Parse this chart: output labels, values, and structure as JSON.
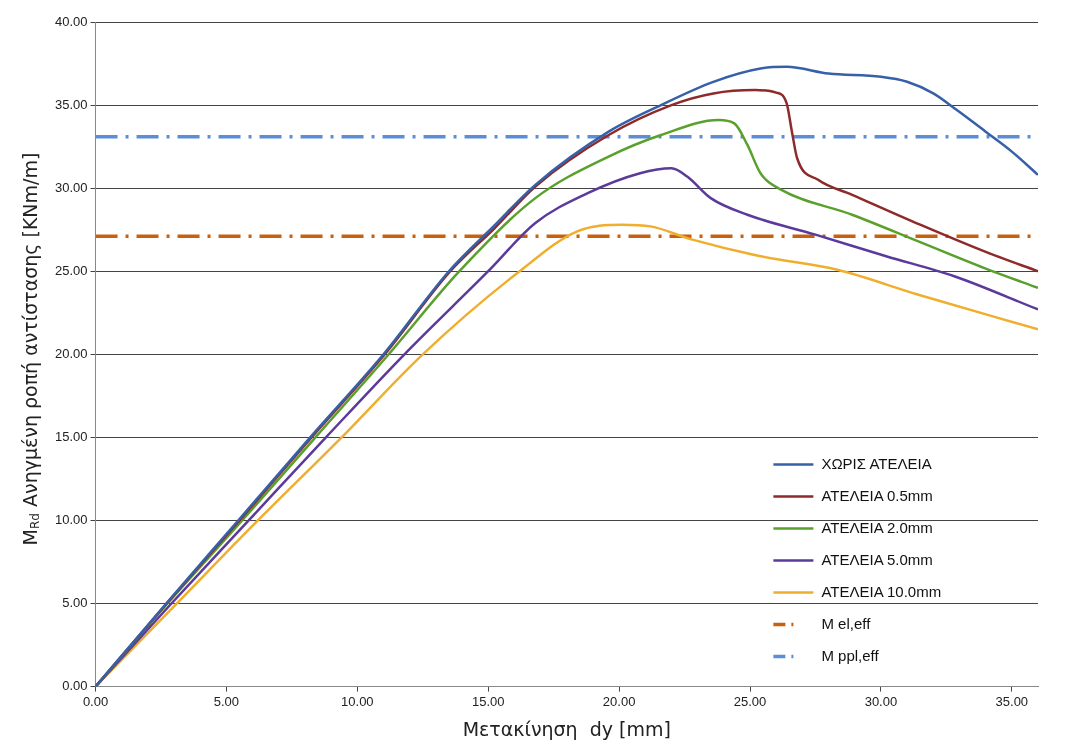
{
  "chart_data": {
    "type": "line",
    "xlabel": "Μετακίνηση  dy [mm]",
    "ylabel": "M$_{Rd}$ Ανηγμένη ροπή αντίστασης [KNm/m]",
    "xlim": [
      0,
      36
    ],
    "xticks": [
      {
        "value": 0,
        "label": "0.00"
      },
      {
        "value": 5,
        "label": "5.00"
      },
      {
        "value": 10,
        "label": "10.00"
      },
      {
        "value": 15,
        "label": "15.00"
      },
      {
        "value": 20,
        "label": "20.00"
      },
      {
        "value": 25,
        "label": "25.00"
      },
      {
        "value": 30,
        "label": "30.00"
      },
      {
        "value": 35,
        "label": "35.00"
      }
    ],
    "ylim": [
      0,
      40
    ],
    "yticks": [
      {
        "value": 0,
        "label": "0.00"
      },
      {
        "value": 5,
        "label": "5.00"
      },
      {
        "value": 10,
        "label": "10.00"
      },
      {
        "value": 15,
        "label": "15.00"
      },
      {
        "value": 20,
        "label": "20.00"
      },
      {
        "value": 25,
        "label": "25.00"
      },
      {
        "value": 30,
        "label": "30.00"
      },
      {
        "value": 35,
        "label": "35.00"
      },
      {
        "value": 40,
        "label": "40.00"
      }
    ],
    "grid": "y",
    "legend": "bottom right",
    "marker": "none",
    "line_style": "solid",
    "series": [
      {
        "name": "ΧΩΡΙΣ ΑΤΕΛΕΙΑ",
        "color": "#3660a8",
        "x": [
          0,
          2.7,
          5.45,
          8.2,
          11.0,
          13.5,
          15.2,
          16.8,
          19.6,
          21.6,
          23.6,
          25.4,
          26.4,
          28.0,
          30.0,
          31.0,
          32.0,
          32.9,
          34.0,
          35.0,
          36.0
        ],
        "values": [
          0,
          5,
          10,
          15,
          20,
          25,
          27.7,
          30.2,
          33.4,
          35.0,
          36.4,
          37.2,
          37.3,
          36.9,
          36.7,
          36.4,
          35.7,
          34.7,
          33.4,
          32.2,
          30.8
        ]
      },
      {
        "name": "ΑΤΕΛΕΙΑ 0.5mm",
        "color": "#8e2a2a",
        "x": [
          0,
          2.72,
          5.5,
          8.25,
          11.05,
          13.55,
          15.25,
          16.8,
          19.6,
          22.0,
          23.6,
          25.2,
          26.0,
          26.4,
          26.6,
          26.8,
          27.6,
          28.9,
          31.5,
          34.1,
          36.0
        ],
        "values": [
          0,
          5,
          10,
          15,
          20,
          25,
          27.6,
          30.1,
          33.2,
          35.0,
          35.7,
          35.9,
          35.75,
          35.1,
          33.4,
          31.8,
          30.5,
          29.6,
          27.8,
          26.1,
          25.0
        ]
      },
      {
        "name": "ΑΤΕΛΕΙΑ 2.0mm",
        "color": "#5aa02c",
        "x": [
          0,
          2.75,
          5.6,
          8.4,
          11.2,
          13.9,
          16.8,
          19.6,
          21.6,
          23.8,
          24.4,
          24.9,
          25.4,
          26.2,
          28.9,
          31.5,
          34.1,
          36.0
        ],
        "values": [
          0,
          5,
          10,
          15,
          20,
          25,
          29.4,
          31.9,
          33.2,
          34.1,
          33.9,
          32.6,
          30.9,
          29.9,
          28.4,
          26.75,
          25.1,
          24.0
        ]
      },
      {
        "name": "ΑΤΕΛΕΙΑ 5.0mm",
        "color": "#5a3a9a",
        "x": [
          0,
          2.9,
          5.85,
          8.8,
          11.8,
          15.0,
          16.8,
          18.8,
          20.8,
          22.0,
          22.6,
          23.5,
          24.9,
          27.5,
          30.2,
          32.8,
          36.0
        ],
        "values": [
          0,
          5,
          10,
          15,
          20,
          25,
          27.9,
          29.7,
          30.9,
          31.2,
          30.7,
          29.4,
          28.4,
          27.2,
          25.9,
          24.7,
          22.7
        ]
      },
      {
        "name": "ΑΤΕΛΕΙΑ 10.0mm",
        "color": "#f0ae2e",
        "x": [
          0,
          3.1,
          6.2,
          9.4,
          12.5,
          16.2,
          18.4,
          20.1,
          21.2,
          22.8,
          25.4,
          28.3,
          31.4,
          36.0
        ],
        "values": [
          0,
          5,
          10,
          15,
          20,
          25,
          27.4,
          27.8,
          27.7,
          26.9,
          25.9,
          25.1,
          23.6,
          21.5
        ]
      }
    ],
    "ref_lines": [
      {
        "axis": "y",
        "value": 27.1,
        "label": "M el,eff",
        "color": "#c8600e",
        "line_style": "dashdot"
      },
      {
        "axis": "y",
        "value": 33.1,
        "label": "M ppl,eff",
        "color": "#5b8ed6",
        "line_style": "dashdot"
      }
    ]
  }
}
